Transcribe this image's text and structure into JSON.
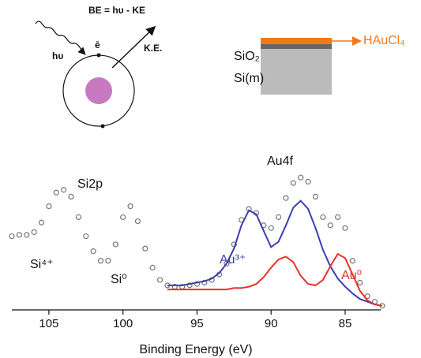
{
  "chart_data": {
    "type": "line",
    "x_label": "Binding Energy (eV)",
    "xlim": [
      107.5,
      82.6
    ],
    "xticks": [
      105,
      100,
      95,
      90,
      85
    ],
    "ylim": [
      0,
      100
    ],
    "annotations": [
      "BE = hυ - KE",
      "hυ",
      "ē",
      "K.E.",
      "SiO₂",
      "Si(m)",
      "HAuCl₄",
      "Si2p",
      "Si⁴⁺",
      "Si⁰",
      "Au4f",
      "Au³⁺",
      "Au⁰"
    ],
    "series": [
      {
        "style": "markers",
        "color": "#777777",
        "x": [
          107.5,
          107,
          106.5,
          106,
          105.5,
          105,
          104.5,
          104,
          103.5,
          103,
          102.5,
          102,
          101.5,
          101,
          100.5,
          100,
          99.5,
          99,
          98.5,
          98,
          97.5,
          97,
          96.5,
          96,
          95.5,
          95,
          94.5,
          94,
          93.5,
          93,
          92.5,
          92,
          91.5,
          91,
          90.5,
          90,
          89.5,
          89,
          88.5,
          88,
          87.5,
          87,
          86.5,
          86,
          85.5,
          85,
          84.5,
          84,
          83.5,
          83,
          82.5
        ],
        "values": [
          54,
          55,
          55,
          57,
          64,
          76,
          86,
          88,
          83,
          68,
          54,
          43,
          36,
          36,
          48,
          68,
          76,
          65,
          45,
          31,
          22,
          18,
          17,
          17,
          18,
          19,
          20,
          22,
          26,
          34,
          48,
          66,
          74,
          71,
          62,
          60,
          68,
          82,
          93,
          97,
          94,
          83,
          68,
          62,
          68,
          60,
          36,
          20,
          10,
          6,
          3
        ]
      },
      {
        "style": "line",
        "color": "#3b3fb0",
        "x": [
          97,
          96.5,
          96,
          95.5,
          95,
          94.5,
          94,
          93.5,
          93,
          92.5,
          92,
          91.5,
          91,
          90.5,
          90,
          89.5,
          89,
          88.5,
          88,
          87.5,
          87,
          86.5,
          86,
          85.5,
          85,
          84.5,
          84,
          83.5,
          83,
          82.5
        ],
        "values": [
          18,
          18,
          18,
          19,
          20,
          21,
          23,
          27,
          34,
          45,
          62,
          73,
          70,
          58,
          46,
          50,
          62,
          75,
          80,
          74,
          60,
          44,
          32,
          23,
          17,
          12,
          8,
          6,
          4,
          3
        ]
      },
      {
        "style": "line",
        "color": "#e8322a",
        "x": [
          97,
          96.5,
          96,
          95.5,
          95,
          94.5,
          94,
          93.5,
          93,
          92.5,
          92,
          91.5,
          91,
          90.5,
          90,
          89.5,
          89,
          88.5,
          88,
          87.5,
          87,
          86.5,
          86,
          85.5,
          85,
          84.5,
          84,
          83.5,
          83,
          82.5
        ],
        "values": [
          15,
          15,
          15,
          15,
          15,
          15,
          15,
          15,
          15,
          16,
          16,
          17,
          19,
          24,
          31,
          37,
          39,
          35,
          25,
          19,
          18,
          22,
          32,
          41,
          38,
          26,
          14,
          7,
          4,
          3
        ]
      }
    ]
  }
}
